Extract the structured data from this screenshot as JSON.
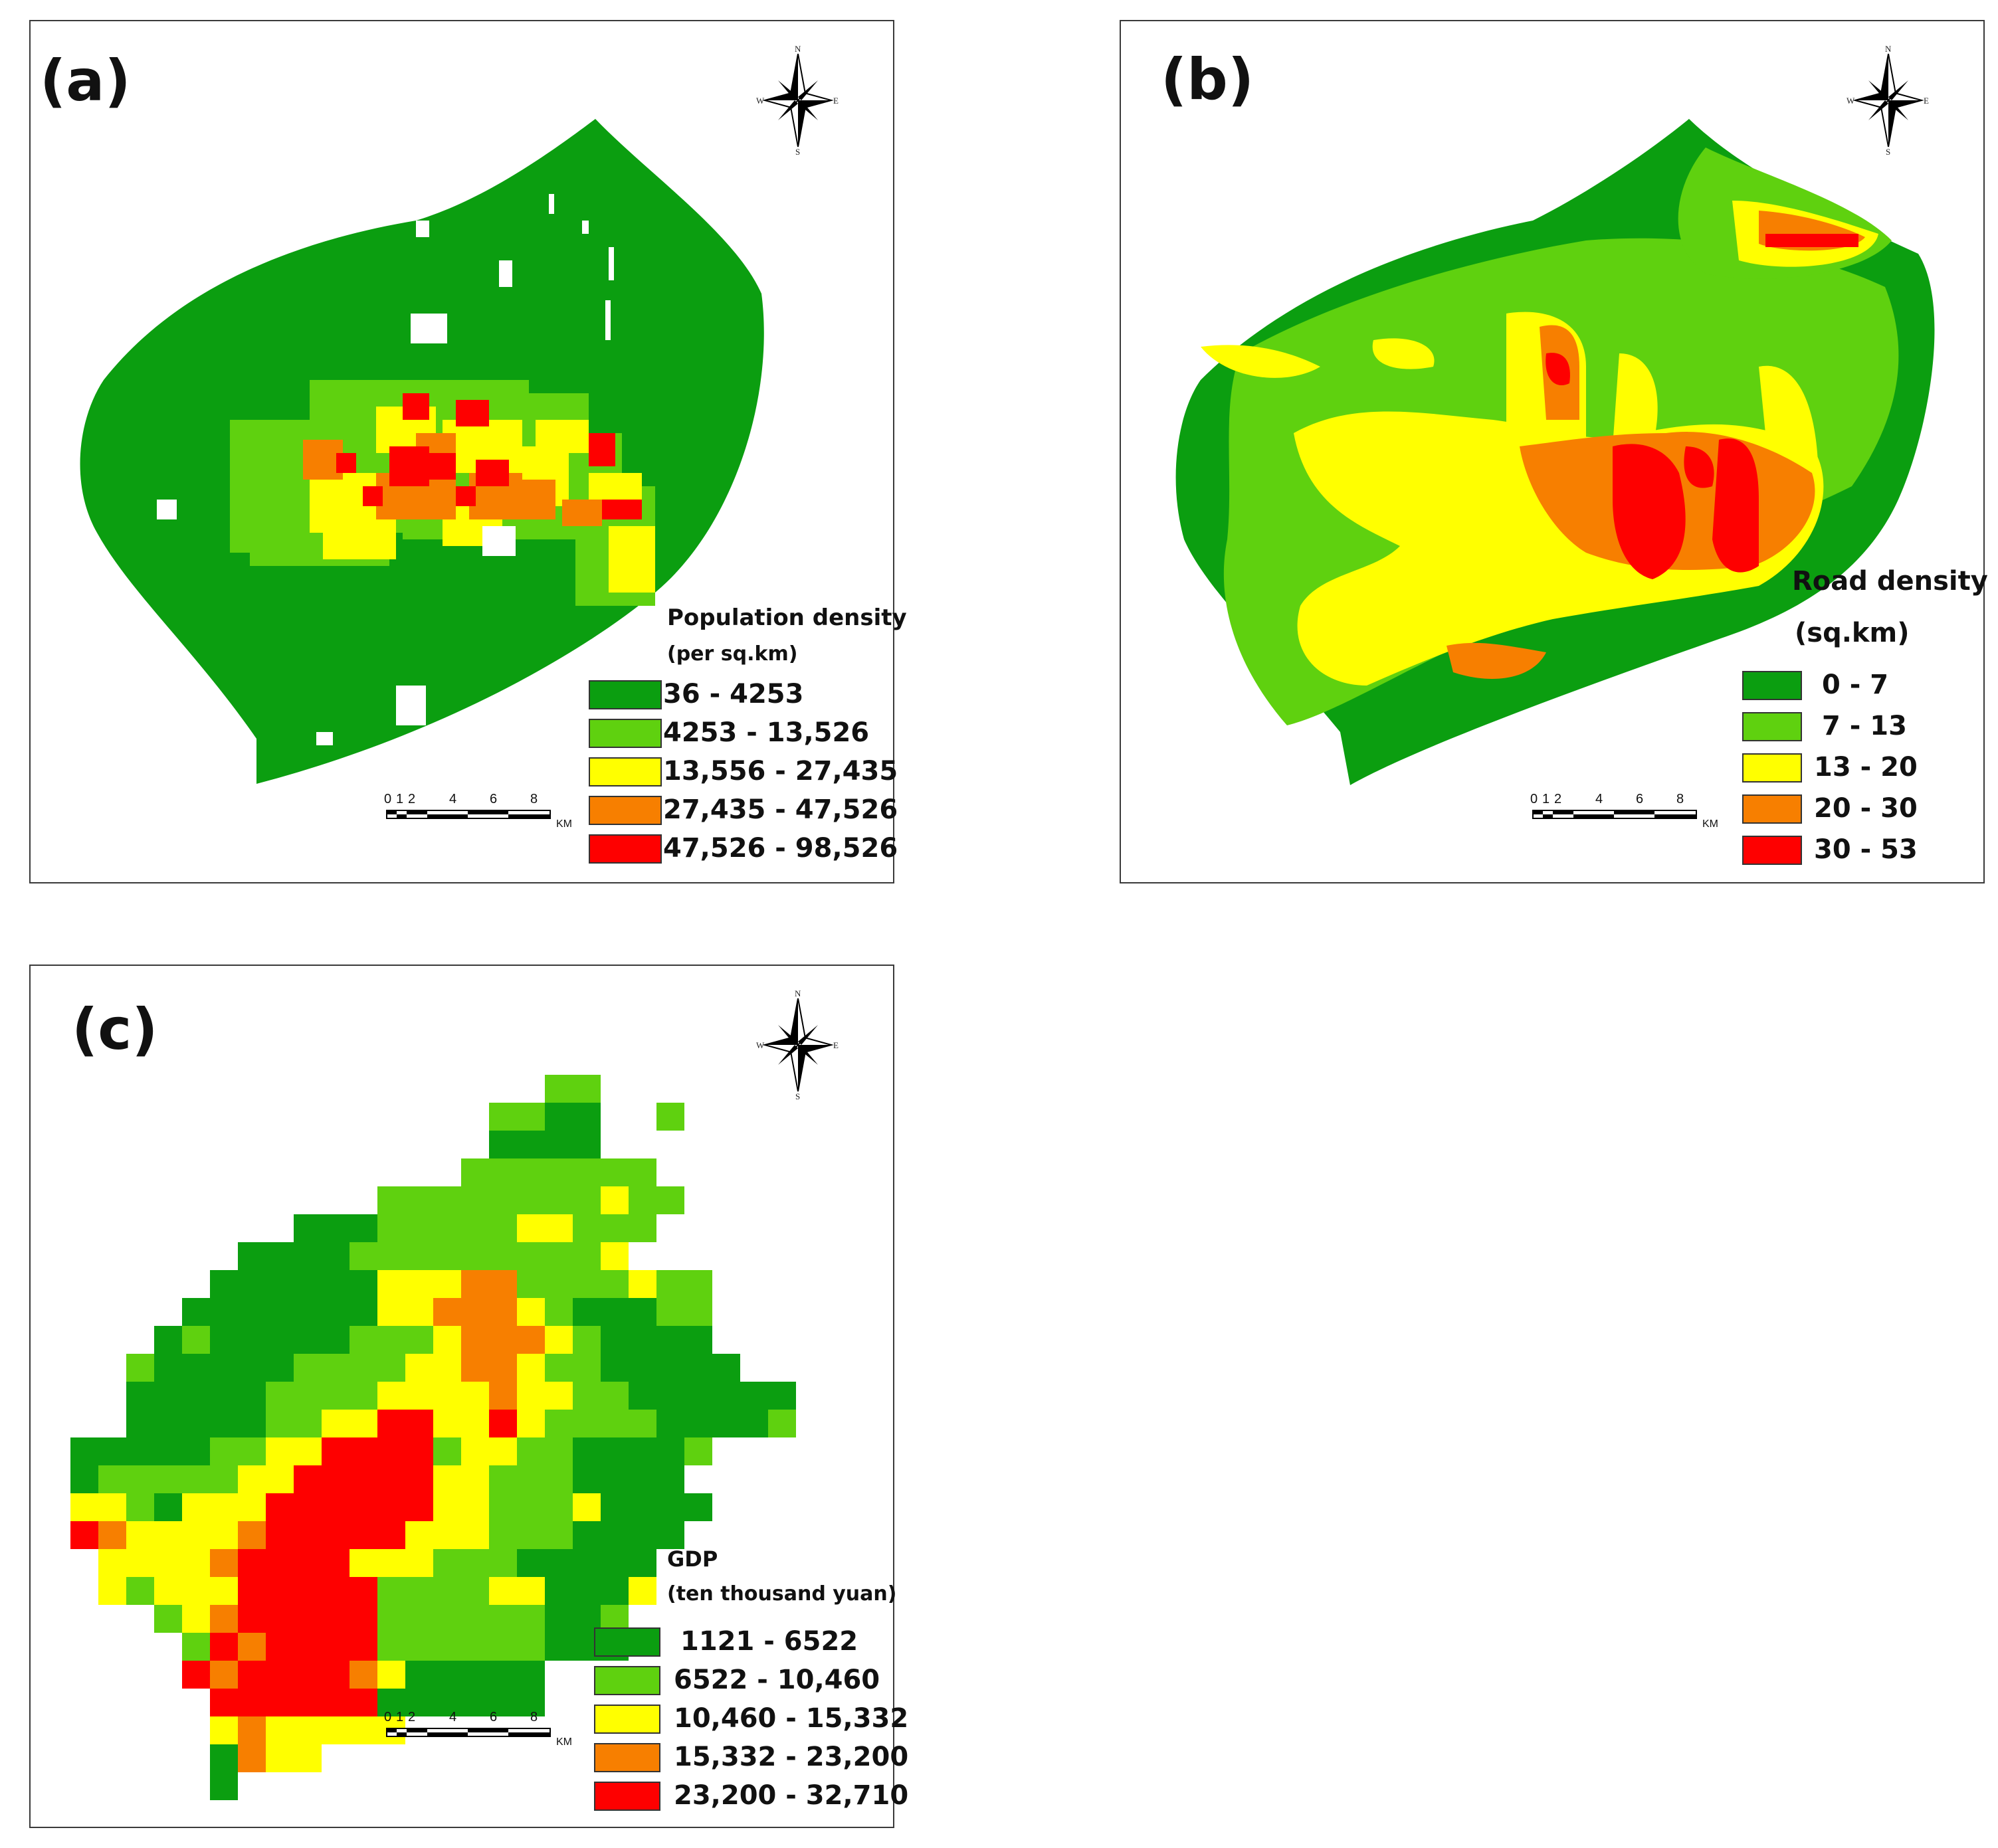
{
  "colors": {
    "c1": "#0b9e10",
    "c2": "#5fd10f",
    "c3": "#ffff00",
    "c4": "#f77f00",
    "c5": "#fe0000",
    "border": "#3a3a3a"
  },
  "compass_labels": {
    "n": "N",
    "s": "S",
    "e": "E",
    "w": "W"
  },
  "scale_bar": {
    "ticks": [
      "0",
      "1",
      "2",
      "4",
      "6",
      "8"
    ],
    "unit": "KM"
  },
  "panels": {
    "a": {
      "label": "(a)",
      "legend_title_1": "Population density",
      "legend_title_2": "(per sq.km)",
      "classes": [
        "36 - 4253",
        "4253 - 13,526",
        "13,556 - 27,435",
        "27,435 - 47,526",
        "47,526 - 98,526"
      ]
    },
    "b": {
      "label": "(b)",
      "legend_title_1": "Road density",
      "legend_title_2": "(sq.km)",
      "classes": [
        "0 - 7",
        "7 - 13",
        "13 - 20",
        "20 - 30",
        "30 - 53"
      ]
    },
    "c": {
      "label": "(c)",
      "legend_title_1": "GDP",
      "legend_title_2": "(ten thousand yuan)",
      "classes": [
        "1121 - 6522",
        "6522 - 10,460",
        "10,460 - 15,332",
        "15,332 - 23,200",
        "23,200 - 32,710"
      ]
    }
  }
}
